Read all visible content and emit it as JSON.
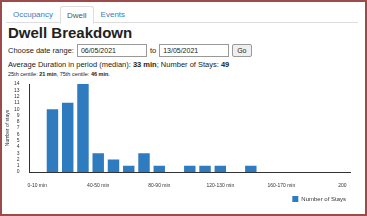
{
  "tabs": [
    "Occupancy",
    "Dwell",
    "Events"
  ],
  "active_tab": "Dwell",
  "heading": "Dwell Breakdown",
  "date_range": {
    "label": "Choose date range:",
    "from": "06/05/2021",
    "separator": "to",
    "to": "13/05/2021",
    "button": "Go"
  },
  "summary": [
    {
      "text": "Average Duration in period (median): "
    },
    {
      "text": "33 min",
      "bold": true
    },
    {
      "text": "; Number of Stays: "
    },
    {
      "text": "49",
      "bold": true
    }
  ],
  "centiles": [
    {
      "text": "25th centile: "
    },
    {
      "text": "21 min",
      "bold": true
    },
    {
      "text": ", 75th centile: "
    },
    {
      "text": "46 min",
      "bold": true
    },
    {
      "text": "."
    }
  ],
  "chart_data": {
    "type": "bar",
    "y_label": "Number of stays",
    "categories": [
      "0-10 min",
      null,
      null,
      null,
      "40-50 min",
      null,
      null,
      null,
      "80-90 min",
      null,
      null,
      null,
      "120-130 min",
      null,
      null,
      null,
      "160-170 min",
      null,
      null,
      null,
      "200"
    ],
    "series": [
      {
        "name": "Number of Stays",
        "color": "#2f7bbf",
        "values": [
          0,
          10,
          11,
          14,
          3,
          2,
          1,
          3,
          1,
          0,
          1,
          1,
          1,
          0,
          1,
          0,
          0,
          0,
          0,
          0,
          null
        ]
      }
    ],
    "ylim": [
      0,
      14
    ],
    "yticks": [
      0,
      1,
      2,
      3,
      4,
      5,
      6,
      7,
      8,
      9,
      10,
      11,
      12,
      13,
      14
    ],
    "grid": false,
    "legend": "bottom right"
  }
}
